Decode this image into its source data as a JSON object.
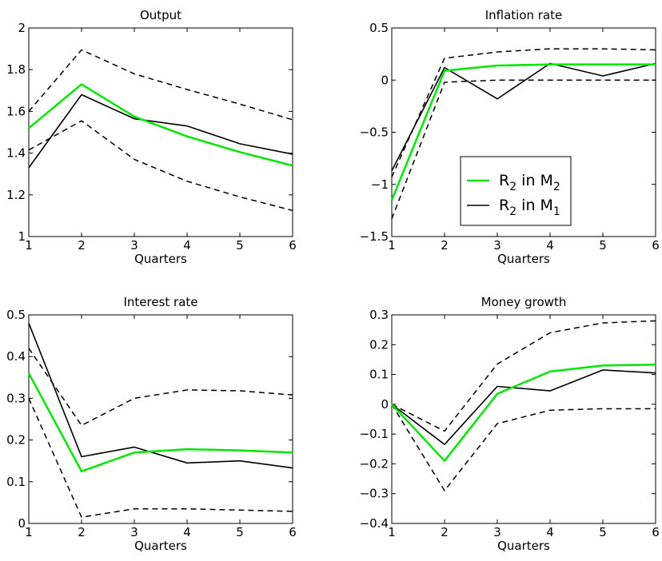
{
  "colors": {
    "green": "#00e600",
    "black": "#000000",
    "band": "#000000"
  },
  "legend": {
    "green_label": "R2 in M2",
    "black_label": "R2 in M1",
    "green": {
      "base": "R",
      "sub1": "2",
      "mid": " in M",
      "sub2": "2"
    },
    "black": {
      "base": "R",
      "sub1": "2",
      "mid": " in M",
      "sub2": "1"
    }
  },
  "chart_data": [
    {
      "type": "line",
      "title": "Output",
      "xlabel": "Quarters",
      "x": [
        1,
        2,
        3,
        4,
        5,
        6
      ],
      "xlim": [
        1,
        6
      ],
      "ylim": [
        1,
        2
      ],
      "xticks": [
        "1",
        "2",
        "3",
        "4",
        "5",
        "6"
      ],
      "yticks": [
        "1",
        "1.2",
        "1.4",
        "1.6",
        "1.8",
        "2"
      ],
      "ytick_values": [
        1,
        1.2,
        1.4,
        1.6,
        1.8,
        2
      ],
      "series": [
        {
          "values": [
            1.52,
            1.73,
            1.575,
            1.48,
            1.405,
            1.34
          ],
          "color": "#00e600",
          "style": "solid-thick"
        },
        {
          "values": [
            1.33,
            1.68,
            1.565,
            1.53,
            1.445,
            1.395
          ],
          "color": "#000000",
          "style": "solid"
        },
        {
          "values": [
            1.6,
            1.895,
            1.78,
            1.705,
            1.635,
            1.56
          ],
          "color": "#000000",
          "style": "dashed"
        },
        {
          "values": [
            1.415,
            1.555,
            1.37,
            1.265,
            1.19,
            1.125
          ],
          "color": "#000000",
          "style": "dashed"
        }
      ]
    },
    {
      "type": "line",
      "title": "Inflation rate",
      "xlabel": "Quarters",
      "x": [
        1,
        2,
        3,
        4,
        5,
        6
      ],
      "xlim": [
        1,
        6
      ],
      "ylim": [
        -1.5,
        0.5
      ],
      "xticks": [
        "1",
        "2",
        "3",
        "4",
        "5",
        "6"
      ],
      "yticks": [
        "−1.5",
        "−1",
        "−0.5",
        "0",
        "0.5"
      ],
      "ytick_values": [
        -1.5,
        -1,
        -0.5,
        0,
        0.5
      ],
      "series": [
        {
          "values": [
            -1.15,
            0.09,
            0.14,
            0.15,
            0.15,
            0.15
          ],
          "color": "#00e600",
          "style": "solid-thick"
        },
        {
          "values": [
            -0.87,
            0.12,
            -0.18,
            0.16,
            0.04,
            0.16
          ],
          "color": "#000000",
          "style": "solid"
        },
        {
          "values": [
            -0.93,
            0.21,
            0.27,
            0.3,
            0.3,
            0.29
          ],
          "color": "#000000",
          "style": "dashed"
        },
        {
          "values": [
            -1.33,
            -0.02,
            0.0,
            0.0,
            0.0,
            0.0
          ],
          "color": "#000000",
          "style": "dashed"
        }
      ]
    },
    {
      "type": "line",
      "title": "Interest rate",
      "xlabel": "Quarters",
      "x": [
        1,
        2,
        3,
        4,
        5,
        6
      ],
      "xlim": [
        1,
        6
      ],
      "ylim": [
        0,
        0.5
      ],
      "xticks": [
        "1",
        "2",
        "3",
        "4",
        "5",
        "6"
      ],
      "yticks": [
        "0",
        "0.1",
        "0.2",
        "0.3",
        "0.4",
        "0.5"
      ],
      "ytick_values": [
        0,
        0.1,
        0.2,
        0.3,
        0.4,
        0.5
      ],
      "series": [
        {
          "values": [
            0.36,
            0.125,
            0.17,
            0.178,
            0.175,
            0.17
          ],
          "color": "#00e600",
          "style": "solid-thick"
        },
        {
          "values": [
            0.48,
            0.16,
            0.183,
            0.145,
            0.15,
            0.133
          ],
          "color": "#000000",
          "style": "solid"
        },
        {
          "values": [
            0.42,
            0.235,
            0.3,
            0.32,
            0.318,
            0.308
          ],
          "color": "#000000",
          "style": "dashed"
        },
        {
          "values": [
            0.3,
            0.015,
            0.035,
            0.035,
            0.032,
            0.029
          ],
          "color": "#000000",
          "style": "dashed"
        }
      ]
    },
    {
      "type": "line",
      "title": "Money growth",
      "xlabel": "Quarters",
      "x": [
        1,
        2,
        3,
        4,
        5,
        6
      ],
      "xlim": [
        1,
        6
      ],
      "ylim": [
        -0.4,
        0.3
      ],
      "xticks": [
        "1",
        "2",
        "3",
        "4",
        "5",
        "6"
      ],
      "yticks": [
        "−0.4",
        "−0.3",
        "−0.2",
        "−0.1",
        "0",
        "0.1",
        "0.2",
        "0.3"
      ],
      "ytick_values": [
        -0.4,
        -0.3,
        -0.2,
        -0.1,
        0,
        0.1,
        0.2,
        0.3
      ],
      "series": [
        {
          "values": [
            0.0,
            -0.19,
            0.035,
            0.11,
            0.13,
            0.133
          ],
          "color": "#00e600",
          "style": "solid-thick"
        },
        {
          "values": [
            0.0,
            -0.135,
            0.06,
            0.045,
            0.115,
            0.105
          ],
          "color": "#000000",
          "style": "solid"
        },
        {
          "values": [
            0.0,
            -0.09,
            0.135,
            0.24,
            0.273,
            0.28
          ],
          "color": "#000000",
          "style": "dashed"
        },
        {
          "values": [
            0.0,
            -0.29,
            -0.065,
            -0.02,
            -0.015,
            -0.015
          ],
          "color": "#000000",
          "style": "dashed"
        }
      ]
    }
  ]
}
